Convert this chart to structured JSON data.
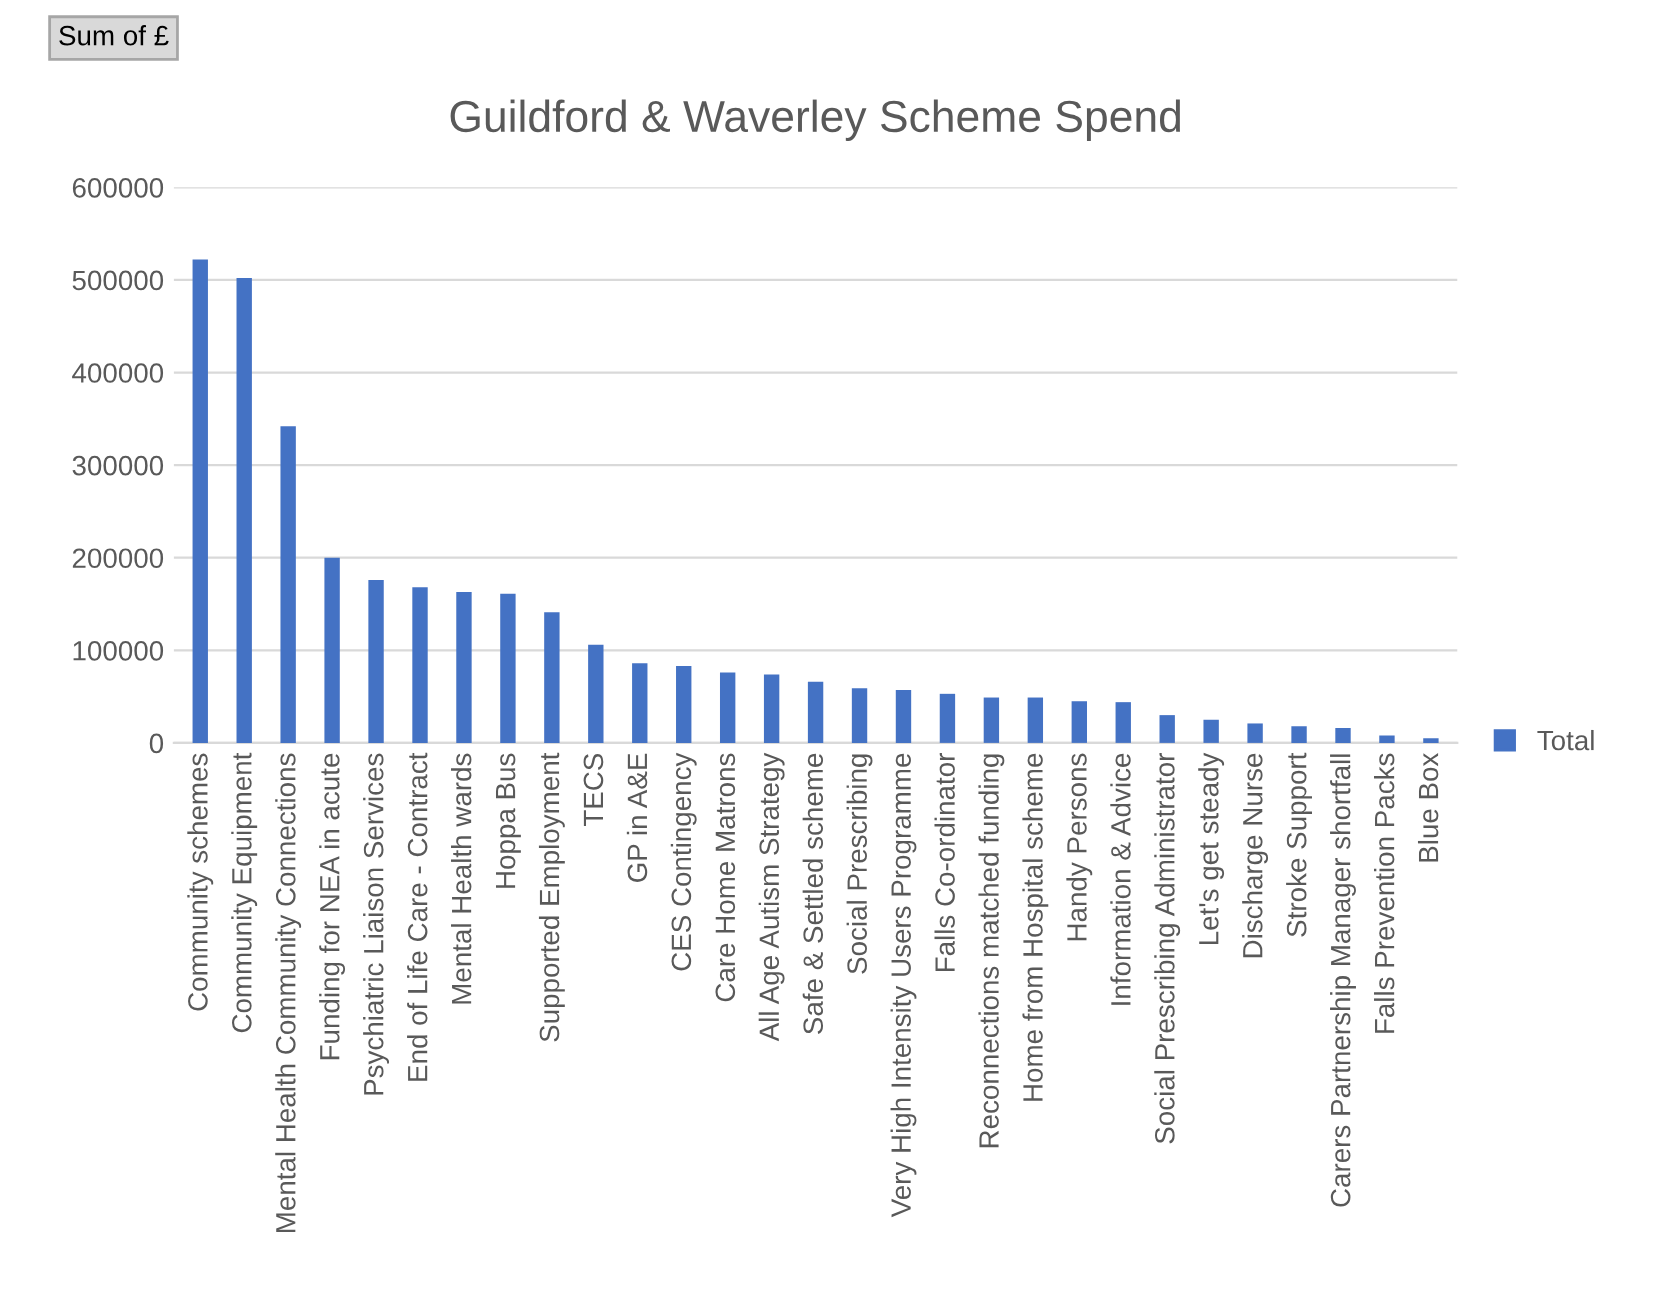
{
  "chart_data": {
    "type": "bar",
    "title": "Guildford & Waverley Scheme Spend",
    "annotations": [
      "Sum of £"
    ],
    "categories": [
      "Community schemes",
      "Community Equipment",
      "Mental Health Community Connections",
      "Funding for NEA in acute",
      "Psychiatric Liaison Services",
      "End of Life Care - Contract",
      "Mental Health wards",
      "Hoppa Bus",
      "Supported Employment",
      "TECS",
      "GP in A&E",
      "CES Contingency",
      "Care Home Matrons",
      "All Age Autism Strategy",
      "Safe & Settled scheme",
      "Social Prescribing",
      "Very High Intensity Users Programme",
      "Falls Co-ordinator",
      "Reconnections matched funding",
      "Home from Hospital scheme",
      "Handy Persons",
      "Information & Advice",
      "Social Prescribing Administrator",
      "Let's get steady",
      "Discharge Nurse",
      "Stroke Support",
      "Carers Partnership Manager shortfall",
      "Falls Prevention Packs",
      "Blue Box"
    ],
    "series": [
      {
        "name": "Total",
        "color": "#4472c4",
        "values": [
          522000,
          502000,
          342000,
          200000,
          176000,
          168000,
          163000,
          161000,
          141000,
          106000,
          86000,
          83000,
          76000,
          74000,
          66000,
          59000,
          57000,
          53000,
          49000,
          49000,
          45000,
          44000,
          30000,
          25000,
          21000,
          18000,
          16000,
          8000,
          5000
        ]
      }
    ],
    "ylim": [
      0,
      600000
    ],
    "yticks": [
      0,
      100000,
      200000,
      300000,
      400000,
      500000,
      600000
    ],
    "grid": "y",
    "legend": "right"
  }
}
